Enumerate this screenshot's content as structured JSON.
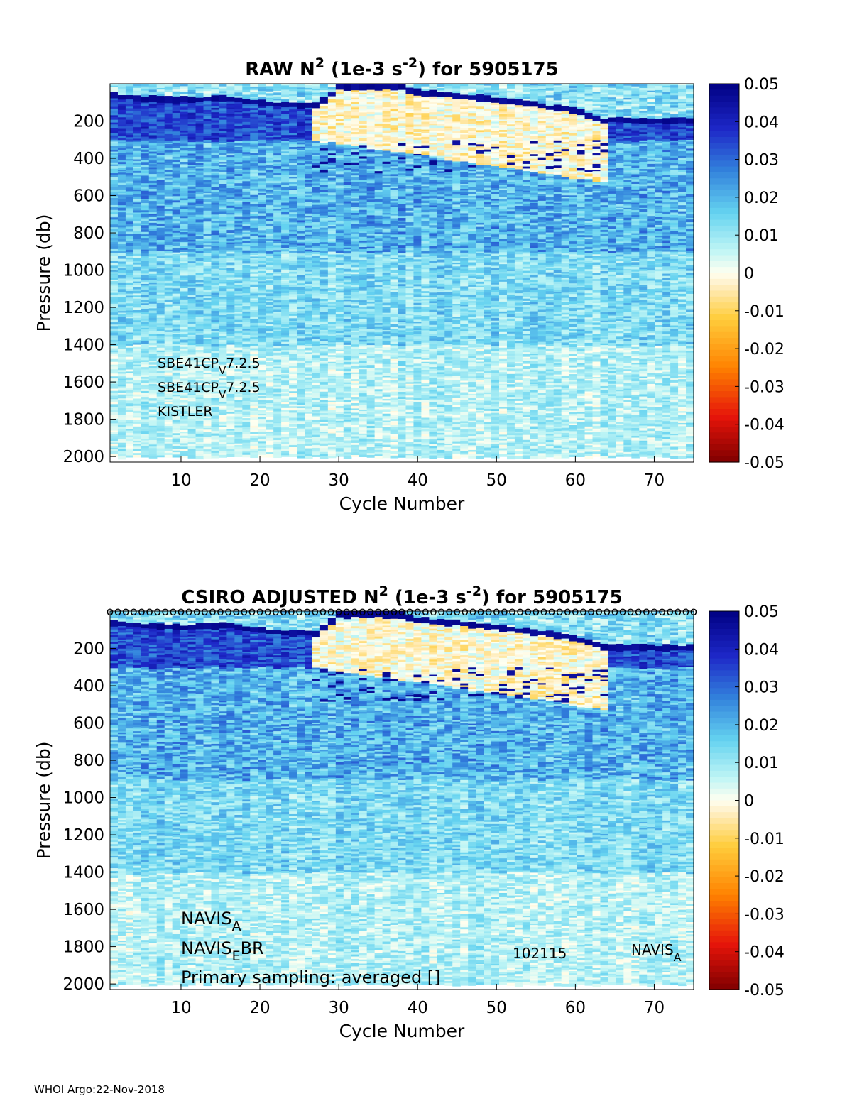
{
  "chart_data": [
    {
      "type": "heatmap",
      "title_parts": [
        "RAW N",
        "2",
        " (1e-3 s",
        "-2",
        ") for 5905175"
      ],
      "xlabel": "Cycle Number",
      "ylabel": "Pressure (db)",
      "xlim": [
        1,
        75
      ],
      "ylim": [
        2030,
        0
      ],
      "xticks": [
        10,
        20,
        30,
        40,
        50,
        60,
        70
      ],
      "yticks": [
        200,
        400,
        600,
        800,
        1000,
        1200,
        1400,
        1600,
        1800,
        2000
      ],
      "colorbar": {
        "min": -0.05,
        "max": 0.05,
        "ticks": [
          "0.05",
          "0.04",
          "0.03",
          "0.02",
          "0.01",
          "0",
          "-0.01",
          "-0.02",
          "-0.03",
          "-0.04",
          "-0.05"
        ]
      },
      "annotations": [
        {
          "parts": [
            "SBE41CP",
            "V",
            "7.2.5"
          ]
        },
        {
          "parts": [
            "SBE41CP",
            "V",
            "7.2.5"
          ]
        },
        {
          "parts": [
            "KISTLER"
          ]
        }
      ],
      "features": {
        "mixed_layer_base_dbar": [
          [
            1,
            45
          ],
          [
            5,
            60
          ],
          [
            10,
            65
          ],
          [
            15,
            55
          ],
          [
            20,
            85
          ],
          [
            27,
            100
          ],
          [
            30,
            0
          ],
          [
            38,
            0
          ],
          [
            40,
            25
          ],
          [
            50,
            65
          ],
          [
            60,
            120
          ],
          [
            64,
            175
          ]
        ],
        "warm_layer_cycles": [
          27,
          64
        ],
        "upper_strong_stratification_dbar": [
          0,
          300
        ]
      }
    },
    {
      "type": "heatmap",
      "title_parts": [
        "CSIRO  ADJUSTED N",
        "2",
        " (1e-3 s",
        "-2",
        ") for 5905175"
      ],
      "xlabel": "Cycle Number",
      "ylabel": "Pressure (db)",
      "xlim": [
        1,
        75
      ],
      "ylim": [
        2030,
        0
      ],
      "xticks": [
        10,
        20,
        30,
        40,
        50,
        60,
        70
      ],
      "yticks": [
        200,
        400,
        600,
        800,
        1000,
        1200,
        1400,
        1600,
        1800,
        2000
      ],
      "colorbar": {
        "min": -0.05,
        "max": 0.05,
        "ticks": [
          "0.05",
          "0.04",
          "0.03",
          "0.02",
          "0.01",
          "0",
          "-0.01",
          "-0.02",
          "-0.03",
          "-0.04",
          "-0.05"
        ]
      },
      "qc_marker_row": {
        "symbol": "o",
        "cycles_from": 1,
        "cycles_to": 75
      },
      "annotations": [
        {
          "parts": [
            "NAVIS",
            "A"
          ]
        },
        {
          "parts": [
            "NAVIS",
            "E",
            "BR"
          ]
        },
        {
          "parts": [
            "Primary sampling: averaged []"
          ]
        },
        {
          "parts": [
            "102115"
          ]
        },
        {
          "parts": [
            "NAVIS",
            "A"
          ]
        }
      ],
      "features": {
        "mixed_layer_base_dbar": [
          [
            1,
            45
          ],
          [
            5,
            60
          ],
          [
            10,
            65
          ],
          [
            15,
            55
          ],
          [
            20,
            85
          ],
          [
            27,
            100
          ],
          [
            30,
            0
          ],
          [
            38,
            0
          ],
          [
            40,
            25
          ],
          [
            50,
            65
          ],
          [
            60,
            120
          ],
          [
            64,
            175
          ]
        ],
        "warm_layer_cycles": [
          27,
          64
        ],
        "upper_strong_stratification_dbar": [
          0,
          300
        ]
      }
    }
  ],
  "footer": "WHOI Argo:22-Nov-2018"
}
